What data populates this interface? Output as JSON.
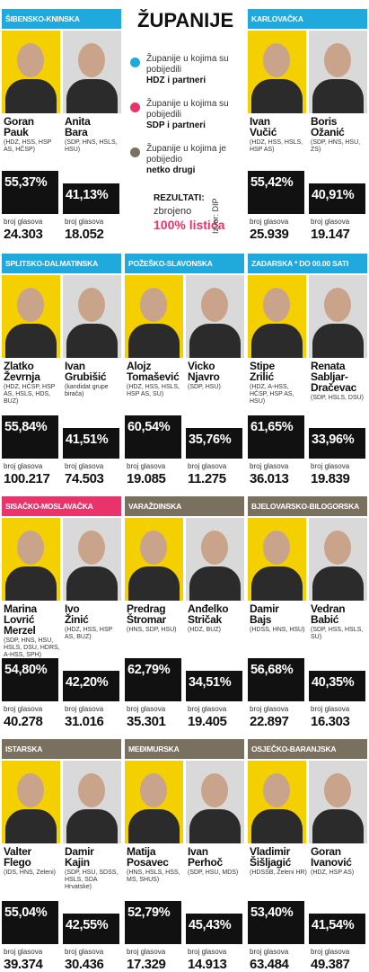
{
  "header": {
    "title": "ŽUPANIJE",
    "legend": [
      {
        "text": "Županije u kojima su pobijedili",
        "bold": "HDZ i partneri",
        "color": "#1fa9dd"
      },
      {
        "text": "Županije u kojima su pobijedili",
        "bold": "SDP i partneri",
        "color": "#e8336b"
      },
      {
        "text": "Županije u kojima je pobijedio",
        "bold": "netko drugi",
        "color": "#7a705f"
      }
    ],
    "results_label": "REZULTATI:",
    "results_text": "zbrojeno",
    "results_highlight": "100% listića",
    "source": "Izvor: DIP"
  },
  "vote_label": "broj glasova",
  "counties": [
    {
      "name": "ŠIBENSKO-KNINSKA",
      "color": "#1fa9dd",
      "candidates": [
        {
          "name": [
            "Goran",
            "Pauk"
          ],
          "party": "(HDZ, HSS, HSP AS, HČSP)",
          "percent": "55,37%",
          "votes": "24.303"
        },
        {
          "name": [
            "Anita",
            "Bara"
          ],
          "party": "(SDP, HNS, HSLS, HSU)",
          "percent": "41,13%",
          "votes": "18.052"
        }
      ]
    },
    {
      "name": "KARLOVAČKA",
      "color": "#1fa9dd",
      "candidates": [
        {
          "name": [
            "Ivan",
            "Vučić"
          ],
          "party": "(HDZ, HSS, HSLS, HSP AS)",
          "percent": "55,42%",
          "votes": "25.939"
        },
        {
          "name": [
            "Boris",
            "Ožanić"
          ],
          "party": "(SDP, HNS, HSU, ZS)",
          "percent": "40,91%",
          "votes": "19.147"
        }
      ]
    },
    {
      "name": "SPLITSKO-DALMATINSKA",
      "color": "#1fa9dd",
      "candidates": [
        {
          "name": [
            "Zlatko",
            "Ževrnja"
          ],
          "party": "(HDZ, HČSP, HSP AS, HSLS, HDS, BUZ)",
          "percent": "55,84%",
          "votes": "100.217"
        },
        {
          "name": [
            "Ivan",
            "Grubišić"
          ],
          "party": "(kandidat grupe birača)",
          "percent": "41,51%",
          "votes": "74.503"
        }
      ]
    },
    {
      "name": "POŽEŠKO-SLAVONSKA",
      "color": "#1fa9dd",
      "candidates": [
        {
          "name": [
            "Alojz",
            "Tomašević"
          ],
          "party": "(HDZ, HSS, HSLS, HSP AS, SU)",
          "percent": "60,54%",
          "votes": "19.085"
        },
        {
          "name": [
            "Vicko",
            "Njavro"
          ],
          "party": "(SDP, HSU)",
          "percent": "35,76%",
          "votes": "11.275"
        }
      ]
    },
    {
      "name": "ZADARSKA * DO 00.00 SATI",
      "color": "#1fa9dd",
      "candidates": [
        {
          "name": [
            "Stipe",
            "Zrilić"
          ],
          "party": "(HDZ, A-HSS, HČSP, HSP AS, HSU)",
          "percent": "61,65%",
          "votes": "36.013"
        },
        {
          "name": [
            "Renata",
            "Sabljar-",
            "Dračevac"
          ],
          "party": "(SDP, HSLS, DSU)",
          "percent": "33,96%",
          "votes": "19.839"
        }
      ]
    },
    {
      "name": "SISAČKO-MOSLAVAČKA",
      "color": "#e8336b",
      "candidates": [
        {
          "name": [
            "Marina",
            "Lovrić",
            "Merzel"
          ],
          "party": "(SDP, HNS, HSU, HSLS, DSU, HDRS, A-HSS, SPH)",
          "percent": "54,80%",
          "votes": "40.278"
        },
        {
          "name": [
            "Ivo",
            "Žinić"
          ],
          "party": "(HDZ, HSS, HSP AS, BUZ)",
          "percent": "42,20%",
          "votes": "31.016"
        }
      ]
    },
    {
      "name": "VARAŽDINSKA",
      "color": "#7a705f",
      "candidates": [
        {
          "name": [
            "Predrag",
            "Štromar"
          ],
          "party": "(HNS, SDP, HSU)",
          "percent": "62,79%",
          "votes": "35.301"
        },
        {
          "name": [
            "Anđelko",
            "Stričak"
          ],
          "party": "(HDZ, BUZ)",
          "percent": "34,51%",
          "votes": "19.405"
        }
      ]
    },
    {
      "name": "BJELOVARSKO-BILOGORSKA",
      "color": "#7a705f",
      "candidates": [
        {
          "name": [
            "Damir",
            "Bajs"
          ],
          "party": "(HDSS, HNS, HSU)",
          "percent": "56,68%",
          "votes": "22.897"
        },
        {
          "name": [
            "Vedran",
            "Babić"
          ],
          "party": "(SDP, HSS, HSLS, SU)",
          "percent": "40,35%",
          "votes": "16.303"
        }
      ]
    },
    {
      "name": "ISTARSKA",
      "color": "#7a705f",
      "candidates": [
        {
          "name": [
            "Valter",
            "Flego"
          ],
          "party": "(IDS, HNS, Zeleni)",
          "percent": "55,04%",
          "votes": "39.374"
        },
        {
          "name": [
            "Damir",
            "Kajin"
          ],
          "party": "(SDP, HSU, SDSS, HSLS, SDA Hrvatske)",
          "percent": "42,55%",
          "votes": "30.436"
        }
      ]
    },
    {
      "name": "MEĐIMURSKA",
      "color": "#7a705f",
      "candidates": [
        {
          "name": [
            "Matija",
            "Posavec"
          ],
          "party": "(HNS, HSLS, HSS, MS, SHUS)",
          "percent": "52,79%",
          "votes": "17.329"
        },
        {
          "name": [
            "Ivan",
            "Perhoč"
          ],
          "party": "(SDP, HSU, MDS)",
          "percent": "45,43%",
          "votes": "14.913"
        }
      ]
    },
    {
      "name": "OSJEČKO-BARANJSKA",
      "color": "#7a705f",
      "candidates": [
        {
          "name": [
            "Vladimir",
            "Šišljagić"
          ],
          "party": "(HDSSB, Zeleni HR)",
          "percent": "53,40%",
          "votes": "63.484"
        },
        {
          "name": [
            "Goran",
            "Ivanović"
          ],
          "party": "(HDZ, HSP AS)",
          "percent": "41,54%",
          "votes": "49.387"
        }
      ]
    }
  ]
}
